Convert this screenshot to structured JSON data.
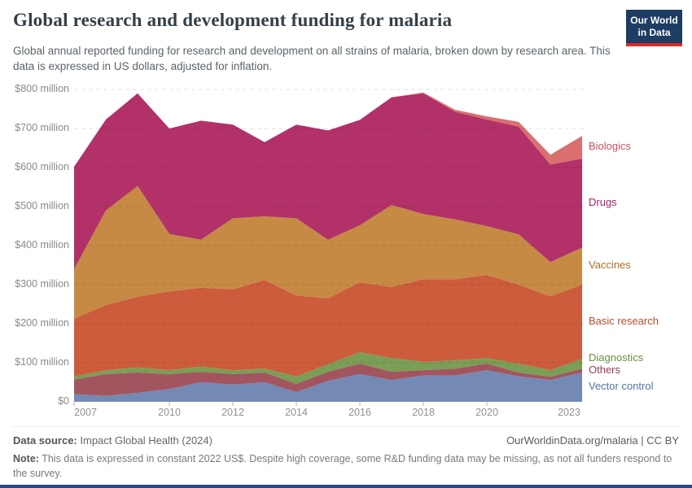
{
  "header": {
    "title": "Global research and development funding for malaria",
    "subtitle": "Global annual reported funding for research and development on all strains of malaria, broken down by research area. This data is expressed in US dollars, adjusted for inflation.",
    "logo": {
      "line1": "Our World",
      "line2": "in Data",
      "bg_color": "#1d3d63",
      "accent_color": "#dc2a26"
    }
  },
  "chart_data": {
    "type": "area",
    "stacked": true,
    "title": "Global research and development funding for malaria",
    "x": [
      2007,
      2008,
      2009,
      2010,
      2011,
      2012,
      2013,
      2014,
      2015,
      2016,
      2017,
      2018,
      2019,
      2020,
      2021,
      2022,
      2023
    ],
    "xlim": [
      2007,
      2023
    ],
    "ylim": [
      0,
      800
    ],
    "yticks": [
      0,
      100,
      200,
      300,
      400,
      500,
      600,
      700,
      800
    ],
    "ytick_labels": [
      "$0",
      "$100 million",
      "$200 million",
      "$300 million",
      "$400 million",
      "$500 million",
      "$600 million",
      "$700 million",
      "$800 million"
    ],
    "xtick_labels": [
      2007,
      2010,
      2012,
      2014,
      2016,
      2018,
      2020,
      2023
    ],
    "xtick_marks": [
      2007,
      2010,
      2012,
      2014,
      2016,
      2018,
      2020
    ],
    "grid": "dashed horizontal",
    "legend_position": "right of plot, colored text labels",
    "units": "US$ million, constant 2022 US$",
    "series": [
      {
        "name": "Vector control",
        "color": "#7489b3",
        "label_color": "#5572a7",
        "values": [
          20,
          15,
          23,
          33,
          50,
          44,
          50,
          25,
          54,
          71,
          56,
          67,
          67,
          81,
          65,
          56,
          75
        ]
      },
      {
        "name": "Others",
        "color": "#a3555f",
        "label_color": "#8e3f4f",
        "values": [
          37,
          56,
          52,
          38,
          27,
          27,
          25,
          21,
          23,
          27,
          21,
          14,
          18,
          17,
          10,
          8,
          10
        ]
      },
      {
        "name": "Diagnostics",
        "color": "#7a9e55",
        "label_color": "#65913e",
        "values": [
          8,
          10,
          13,
          10,
          13,
          10,
          10,
          19,
          19,
          29,
          35,
          21,
          21,
          14,
          23,
          17,
          25
        ]
      },
      {
        "name": "Basic research",
        "color": "#cc5c3b",
        "label_color": "#bd4b27",
        "values": [
          148,
          167,
          181,
          202,
          202,
          207,
          227,
          207,
          169,
          179,
          182,
          212,
          208,
          213,
          202,
          189,
          190
        ]
      },
      {
        "name": "Vaccines",
        "color": "#c68a45",
        "label_color": "#b06e2c",
        "values": [
          127,
          242,
          284,
          147,
          123,
          182,
          163,
          198,
          150,
          146,
          210,
          167,
          153,
          125,
          129,
          88,
          95
        ]
      },
      {
        "name": "Drugs",
        "color": "#b23168",
        "label_color": "#a82067",
        "values": [
          262,
          233,
          237,
          270,
          305,
          240,
          190,
          240,
          280,
          270,
          276,
          309,
          276,
          273,
          276,
          250,
          228
        ]
      },
      {
        "name": "Biologics",
        "color": "#d96f6f",
        "label_color": "#c9515b",
        "values": [
          0,
          0,
          0,
          0,
          0,
          0,
          0,
          0,
          0,
          0,
          0,
          2,
          5,
          8,
          12,
          25,
          58
        ]
      }
    ]
  },
  "footer": {
    "data_source_label": "Data source:",
    "data_source_value": "Impact Global Health (2024)",
    "link": "OurWorldinData.org/malaria | CC BY",
    "note_label": "Note:",
    "note_text": "This data is expressed in constant 2022 US$. Despite high coverage, some R&D funding data may be missing, as not all funders respond to the survey."
  }
}
